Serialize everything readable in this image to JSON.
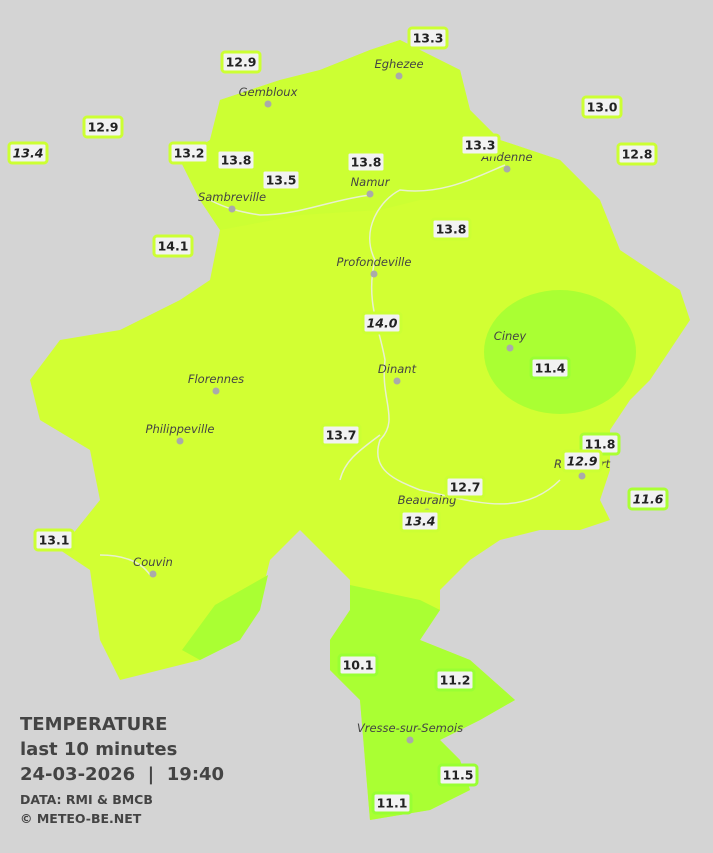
{
  "map": {
    "title": "TEMPERATURE",
    "subtitle": "last 10 minutes",
    "datetime": "24-03-2026  |  19:40",
    "source": "DATA: RMI & BMCB",
    "credit": "© METEO-BE.NET",
    "cities": [
      "Gembloux",
      "Eghezee",
      "Andenne",
      "Namur",
      "Sambreville",
      "Profondeville",
      "Ciney",
      "Dinant",
      "Florennes",
      "Philippeville",
      "Rochefort",
      "Beauraing",
      "Couvin",
      "Vresse-sur-Semois"
    ],
    "stations": [
      {
        "value": "13.3",
        "color": "#ccff33"
      },
      {
        "value": "12.9",
        "color": "#ccff33"
      },
      {
        "value": "13.0",
        "color": "#ccff33"
      },
      {
        "value": "12.9",
        "color": "#ccff33"
      },
      {
        "value": "13.4",
        "color": "#ccff33",
        "italic": true
      },
      {
        "value": "13.2",
        "color": "#ccff33"
      },
      {
        "value": "13.8",
        "color": "#ccff33"
      },
      {
        "value": "13.5",
        "color": "#ccff33"
      },
      {
        "value": "13.8",
        "color": "#ccff33"
      },
      {
        "value": "13.3",
        "color": "#ccff33"
      },
      {
        "value": "12.8",
        "color": "#ccff33"
      },
      {
        "value": "14.1",
        "color": "#ccff33"
      },
      {
        "value": "13.8",
        "color": "#ccff33"
      },
      {
        "value": "14.0",
        "color": "#ccff33",
        "italic": true
      },
      {
        "value": "11.4",
        "color": "#99ff33"
      },
      {
        "value": "11.8",
        "color": "#aaff33"
      },
      {
        "value": "12.9",
        "color": "#ccff33",
        "italic": true
      },
      {
        "value": "13.7",
        "color": "#ccff33"
      },
      {
        "value": "12.7",
        "color": "#ccff33"
      },
      {
        "value": "13.4",
        "color": "#ccff33",
        "italic": true
      },
      {
        "value": "11.6",
        "color": "#aaff33",
        "italic": true
      },
      {
        "value": "13.1",
        "color": "#ccff33"
      },
      {
        "value": "10.1",
        "color": "#99ff33"
      },
      {
        "value": "11.2",
        "color": "#99ff33"
      },
      {
        "value": "11.5",
        "color": "#99ff33"
      },
      {
        "value": "11.1",
        "color": "#99ff33"
      }
    ]
  }
}
